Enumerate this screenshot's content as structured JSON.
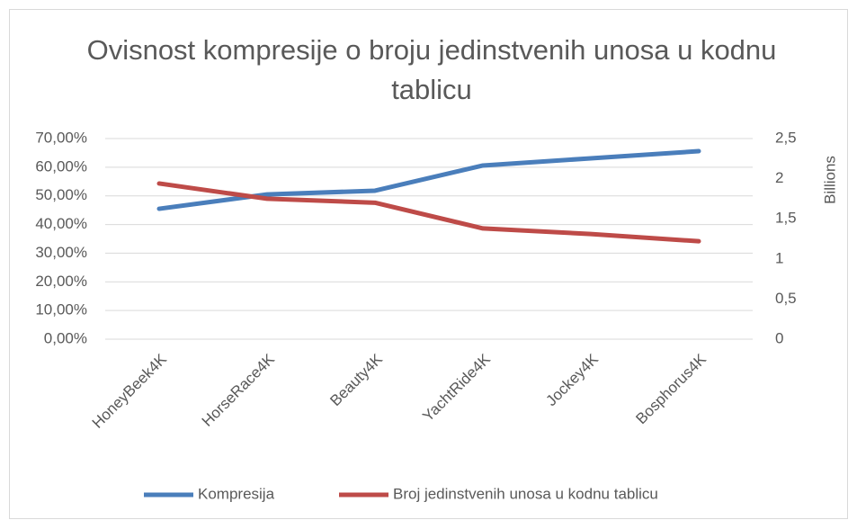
{
  "chart_data": {
    "type": "line",
    "title": "Ovisnost kompresije o broju jedinstvenih unosa u kodnu tablicu",
    "y2label": "Billions",
    "categories": [
      "HoneyBeek4K",
      "HorseRace4K",
      "Beauty4K",
      "YachtRide4K",
      "Jockey4K",
      "Bosphorus4K"
    ],
    "series": [
      {
        "name": "Kompresija",
        "color": "#4a7ebb",
        "values": [
          45.5,
          50.5,
          51.8,
          60.6,
          63.1,
          65.6
        ]
      },
      {
        "name": "Broj jedinstvenih unosa u kodnu tablicu",
        "color": "#be4b48",
        "axis": "y2",
        "values": [
          1.94,
          1.75,
          1.7,
          1.38,
          1.31,
          1.22
        ]
      }
    ],
    "ylim": [
      0,
      70
    ],
    "yticks": [
      {
        "value": 0,
        "label": "0,00%"
      },
      {
        "value": 10,
        "label": "10,00%"
      },
      {
        "value": 20,
        "label": "20,00%"
      },
      {
        "value": 30,
        "label": "30,00%"
      },
      {
        "value": 40,
        "label": "40,00%"
      },
      {
        "value": 50,
        "label": "50,00%"
      },
      {
        "value": 60,
        "label": "60,00%"
      },
      {
        "value": 70,
        "label": "70,00%"
      }
    ],
    "y2lim": [
      0,
      2.5
    ],
    "y2ticks": [
      0,
      {
        "value": 0.5,
        "label": "0,5"
      },
      1,
      {
        "value": 1.5,
        "label": "1,5"
      },
      2,
      {
        "value": 2.5,
        "label": "2,5"
      }
    ],
    "grid": true,
    "legend": "bottom"
  }
}
